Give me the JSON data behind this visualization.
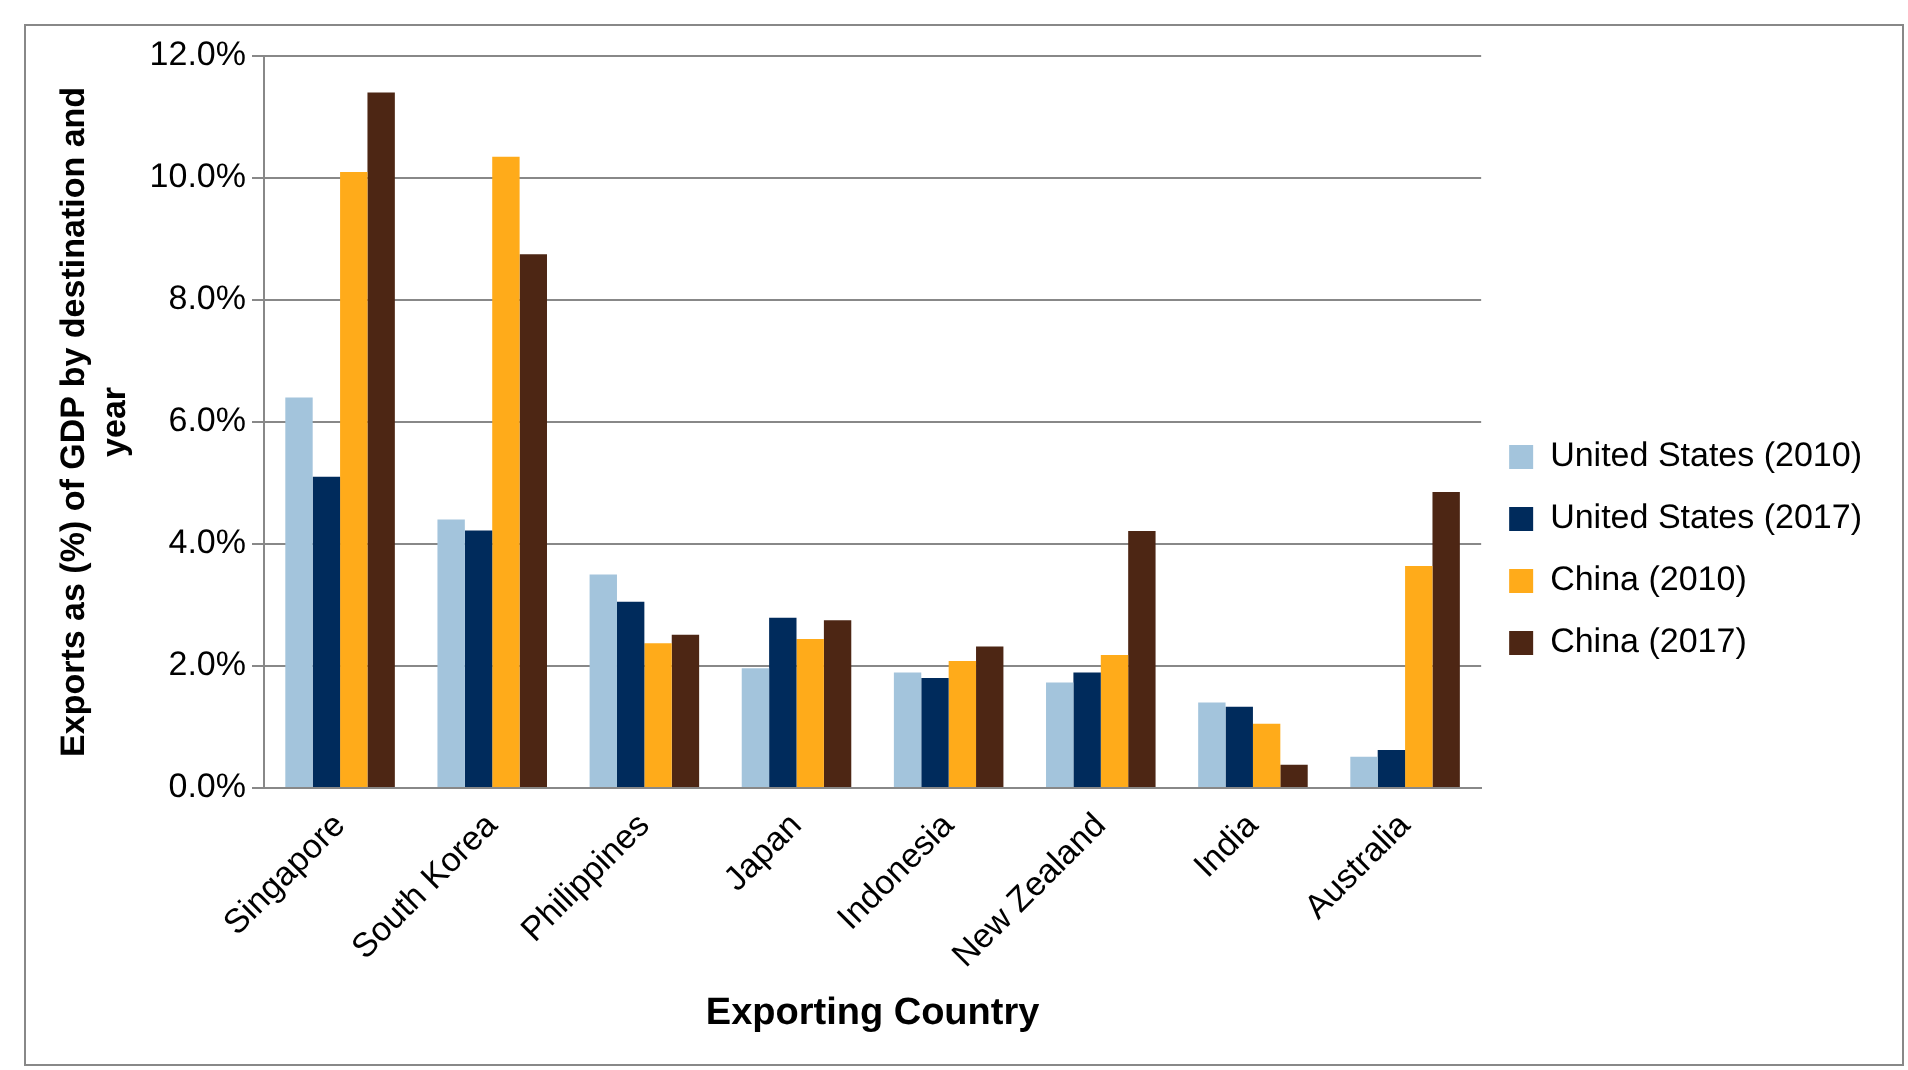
{
  "chart_data": {
    "type": "bar",
    "xlabel": "Exporting Country",
    "ylabel": "Exports as (%) of GDP by destination and year",
    "categories": [
      "Singapore",
      "South Korea",
      "Philippines",
      "Japan",
      "Indonesia",
      "New Zealand",
      "India",
      "Australia"
    ],
    "series": [
      {
        "name": "United States (2010)",
        "color": "#a3c4dc",
        "values": [
          6.4,
          4.4,
          3.5,
          1.96,
          1.89,
          1.73,
          1.4,
          0.51
        ]
      },
      {
        "name": "United States (2017)",
        "color": "#002b5c",
        "values": [
          5.1,
          4.22,
          3.05,
          2.79,
          1.8,
          1.89,
          1.33,
          0.62
        ]
      },
      {
        "name": "China (2010)",
        "color": "#ffab1a",
        "values": [
          10.1,
          10.35,
          2.37,
          2.44,
          2.08,
          2.18,
          1.05,
          3.64
        ]
      },
      {
        "name": "China (2017)",
        "color": "#4d2614",
        "values": [
          11.4,
          8.75,
          2.51,
          2.75,
          2.32,
          4.21,
          0.38,
          4.85
        ]
      }
    ],
    "ylim": [
      0,
      12
    ],
    "yticks": [
      {
        "value": 0,
        "label": "0.0%"
      },
      {
        "value": 2,
        "label": "2.0%"
      },
      {
        "value": 4,
        "label": "4.0%"
      },
      {
        "value": 6,
        "label": "6.0%"
      },
      {
        "value": 8,
        "label": "8.0%"
      },
      {
        "value": 10,
        "label": "10.0%"
      },
      {
        "value": 12,
        "label": "12.0%"
      }
    ],
    "grid": "y",
    "legend": "right"
  }
}
